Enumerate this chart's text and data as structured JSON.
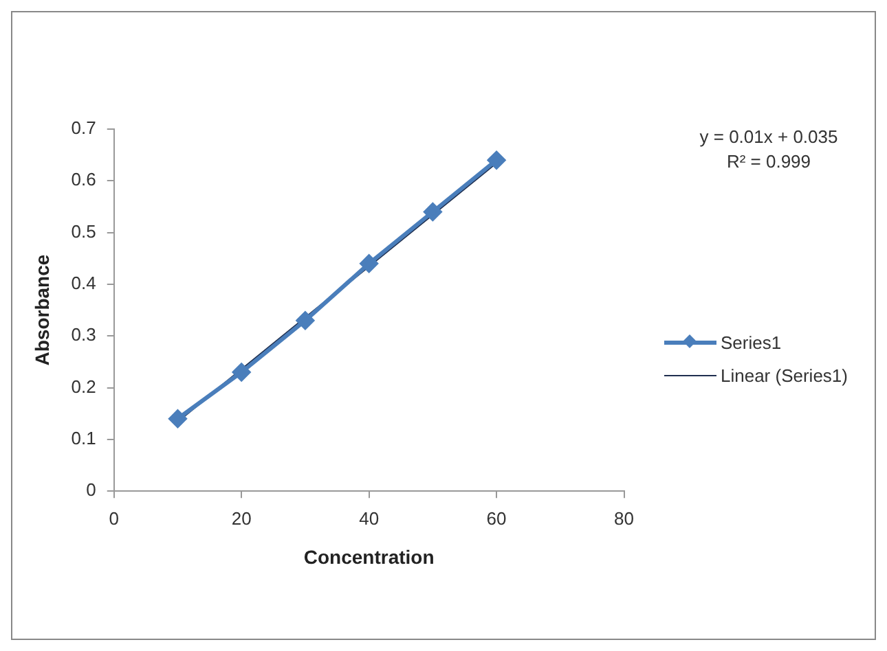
{
  "chart_data": {
    "type": "line",
    "xlabel": "Concentration",
    "ylabel": "Absorbance",
    "xlim": [
      0,
      80
    ],
    "ylim": [
      0,
      0.7
    ],
    "xticks": [
      0,
      20,
      40,
      60,
      80
    ],
    "yticks": [
      0,
      0.1,
      0.2,
      0.3,
      0.4,
      0.5,
      0.6,
      0.7
    ],
    "grid": false,
    "legend": "right",
    "annotations": [
      "y = 0.01x + 0.035",
      "R² = 0.999"
    ],
    "series": [
      {
        "name": "Series1",
        "color": "#4a7ebb",
        "marker": "diamond",
        "line_style": "solid",
        "x": [
          10,
          20,
          30,
          40,
          50,
          60
        ],
        "values": [
          0.14,
          0.23,
          0.33,
          0.44,
          0.54,
          0.64
        ]
      },
      {
        "name": "Linear (Series1)",
        "color": "#1f2f4f",
        "marker": "none",
        "line_style": "solid",
        "x": [
          10,
          60
        ],
        "values": [
          0.135,
          0.635
        ]
      }
    ]
  }
}
